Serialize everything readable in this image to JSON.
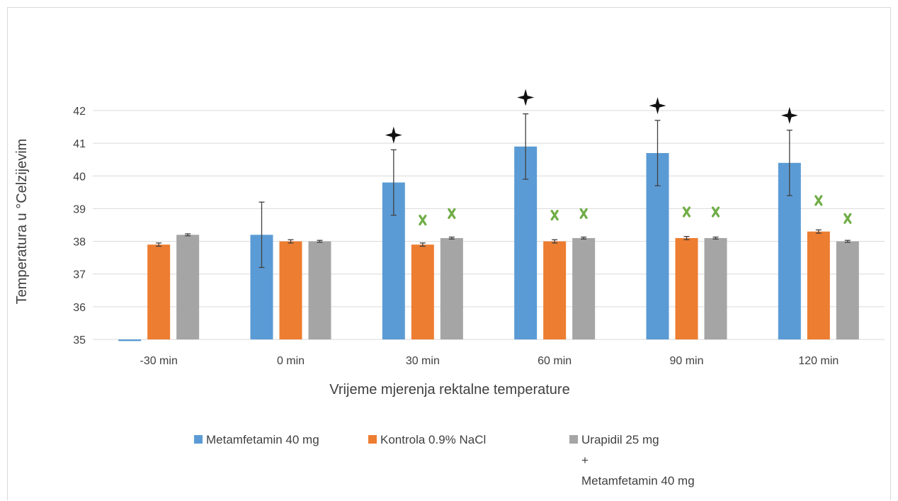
{
  "chart_data": {
    "type": "bar",
    "title": "",
    "xlabel": "Vrijeme mjerenja rektalne temperature",
    "ylabel": "Temperatura u °Celzijevim",
    "ylim": [
      35,
      42
    ],
    "yticks": [
      35,
      36,
      37,
      38,
      39,
      40,
      41,
      42
    ],
    "grid": true,
    "legend_position": "bottom",
    "categories": [
      "-30 min",
      "0 min",
      "30 min",
      "60 min",
      "90 min",
      "120 min"
    ],
    "series": [
      {
        "name": "Metamfetamin 40 mg",
        "color": "#5b9bd5",
        "values": [
          34.95,
          38.2,
          39.8,
          40.9,
          40.7,
          40.4
        ],
        "error": [
          0,
          1.0,
          1.0,
          1.0,
          1.0,
          1.0
        ]
      },
      {
        "name": "Kontrola 0.9% NaCl",
        "color": "#ed7d31",
        "values": [
          37.9,
          38.0,
          37.9,
          38.0,
          38.1,
          38.3
        ],
        "error": [
          0.05,
          0.05,
          0.05,
          0.05,
          0.05,
          0.05
        ]
      },
      {
        "name": "Urapidil 25 mg",
        "name_lines": [
          "Urapidil 25 mg",
          "+",
          "Metamfetamin 40 mg"
        ],
        "color": "#a5a5a5",
        "values": [
          38.2,
          38.0,
          38.1,
          38.1,
          38.1,
          38.0
        ],
        "error": [
          0.03,
          0.03,
          0.03,
          0.03,
          0.03,
          0.03
        ]
      }
    ],
    "annotations": {
      "star_color": "#111111",
      "star_markers": [
        {
          "category": "30 min",
          "series": 0,
          "y": 41.25
        },
        {
          "category": "60 min",
          "series": 0,
          "y": 42.4
        },
        {
          "category": "90 min",
          "series": 0,
          "y": 42.15
        },
        {
          "category": "120 min",
          "series": 0,
          "y": 41.85
        }
      ],
      "cross_color": "#70ad47",
      "cross_markers": [
        {
          "category": "30 min",
          "series": 1,
          "y": 38.65
        },
        {
          "category": "30 min",
          "series": 2,
          "y": 38.85
        },
        {
          "category": "60 min",
          "series": 1,
          "y": 38.8
        },
        {
          "category": "60 min",
          "series": 2,
          "y": 38.85
        },
        {
          "category": "90 min",
          "series": 1,
          "y": 38.9
        },
        {
          "category": "90 min",
          "series": 2,
          "y": 38.9
        },
        {
          "category": "120 min",
          "series": 1,
          "y": 39.25
        },
        {
          "category": "120 min",
          "series": 2,
          "y": 38.7
        }
      ]
    }
  }
}
